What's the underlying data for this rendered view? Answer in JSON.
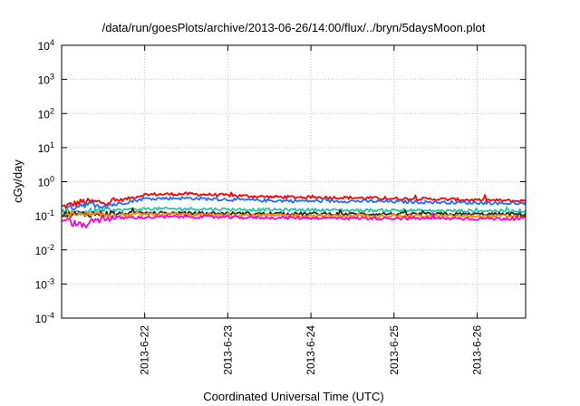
{
  "chart_data": {
    "type": "line",
    "title": "/data/run/goesPlots/archive/2013-06-26/14:00/flux/../bryn/5daysMoon.plot",
    "xlabel": "Coordinated Universal Time (UTC)",
    "ylabel": "cGy/day",
    "yscale": "log",
    "ylim": [
      0.0001,
      10000
    ],
    "y_ticks": [
      {
        "value": 0.0001,
        "base": "10",
        "exp": "-4"
      },
      {
        "value": 0.001,
        "base": "10",
        "exp": "-3"
      },
      {
        "value": 0.01,
        "base": "10",
        "exp": "-2"
      },
      {
        "value": 0.1,
        "base": "10",
        "exp": "-1"
      },
      {
        "value": 1,
        "base": "10",
        "exp": "0"
      },
      {
        "value": 10,
        "base": "10",
        "exp": "1"
      },
      {
        "value": 100,
        "base": "10",
        "exp": "2"
      },
      {
        "value": 1000,
        "base": "10",
        "exp": "3"
      },
      {
        "value": 10000,
        "base": "10",
        "exp": "4"
      }
    ],
    "xlim": [
      "2013-06-21 00:00",
      "2013-06-26 14:00"
    ],
    "x_ticks": [
      "2013-6-22",
      "2013-6-23",
      "2013-6-24",
      "2013-6-25",
      "2013-6-26"
    ],
    "grid": true,
    "series": [
      {
        "color": "#ff0000",
        "x": [
          "2013-06-21 00:00",
          "2013-06-21 06:00",
          "2013-06-21 12:00",
          "2013-06-21 18:00",
          "2013-06-22 00:00",
          "2013-06-22 12:00",
          "2013-06-23 00:00",
          "2013-06-23 12:00",
          "2013-06-24 00:00",
          "2013-06-24 12:00",
          "2013-06-25 00:00",
          "2013-06-25 12:00",
          "2013-06-26 00:00",
          "2013-06-26 14:00"
        ],
        "values": [
          0.18,
          0.26,
          0.25,
          0.3,
          0.42,
          0.44,
          0.4,
          0.36,
          0.35,
          0.34,
          0.32,
          0.31,
          0.29,
          0.27
        ]
      },
      {
        "color": "#1f6fff",
        "x": [
          "2013-06-21 00:00",
          "2013-06-21 06:00",
          "2013-06-21 12:00",
          "2013-06-21 18:00",
          "2013-06-22 00:00",
          "2013-06-22 12:00",
          "2013-06-23 00:00",
          "2013-06-23 12:00",
          "2013-06-24 00:00",
          "2013-06-24 12:00",
          "2013-06-25 00:00",
          "2013-06-25 12:00",
          "2013-06-26 00:00",
          "2013-06-26 14:00"
        ],
        "values": [
          0.14,
          0.22,
          0.2,
          0.24,
          0.32,
          0.33,
          0.3,
          0.28,
          0.27,
          0.27,
          0.26,
          0.25,
          0.24,
          0.23
        ]
      },
      {
        "color": "#22c8a8",
        "x": [
          "2013-06-21 00:00",
          "2013-06-21 12:00",
          "2013-06-22 00:00",
          "2013-06-22 12:00",
          "2013-06-23 00:00",
          "2013-06-23 12:00",
          "2013-06-24 00:00",
          "2013-06-24 12:00",
          "2013-06-25 00:00",
          "2013-06-25 12:00",
          "2013-06-26 00:00",
          "2013-06-26 14:00"
        ],
        "values": [
          0.12,
          0.14,
          0.16,
          0.16,
          0.155,
          0.15,
          0.15,
          0.145,
          0.145,
          0.14,
          0.14,
          0.14
        ]
      },
      {
        "color": "#2a2a2a",
        "x": [
          "2013-06-21 00:00",
          "2013-06-21 12:00",
          "2013-06-22 00:00",
          "2013-06-22 12:00",
          "2013-06-23 00:00",
          "2013-06-23 12:00",
          "2013-06-24 00:00",
          "2013-06-24 12:00",
          "2013-06-25 00:00",
          "2013-06-25 12:00",
          "2013-06-26 00:00",
          "2013-06-26 14:00"
        ],
        "values": [
          0.11,
          0.115,
          0.12,
          0.12,
          0.118,
          0.115,
          0.115,
          0.113,
          0.113,
          0.112,
          0.112,
          0.112
        ]
      },
      {
        "color": "#ff8800",
        "x": [
          "2013-06-21 00:00",
          "2013-06-21 12:00",
          "2013-06-22 00:00",
          "2013-06-22 12:00",
          "2013-06-23 00:00",
          "2013-06-23 12:00",
          "2013-06-24 00:00",
          "2013-06-24 12:00",
          "2013-06-25 00:00",
          "2013-06-25 12:00",
          "2013-06-26 00:00",
          "2013-06-26 14:00"
        ],
        "values": [
          0.1,
          0.105,
          0.11,
          0.11,
          0.105,
          0.103,
          0.102,
          0.1,
          0.1,
          0.099,
          0.098,
          0.098
        ]
      },
      {
        "color": "#ff00cc",
        "x": [
          "2013-06-21 00:00",
          "2013-06-21 06:00",
          "2013-06-21 12:00",
          "2013-06-22 00:00",
          "2013-06-22 12:00",
          "2013-06-23 00:00",
          "2013-06-23 12:00",
          "2013-06-24 00:00",
          "2013-06-24 12:00",
          "2013-06-25 00:00",
          "2013-06-25 12:00",
          "2013-06-26 00:00",
          "2013-06-26 14:00"
        ],
        "values": [
          0.08,
          0.05,
          0.085,
          0.09,
          0.095,
          0.09,
          0.088,
          0.087,
          0.085,
          0.085,
          0.084,
          0.083,
          0.083
        ]
      }
    ]
  }
}
